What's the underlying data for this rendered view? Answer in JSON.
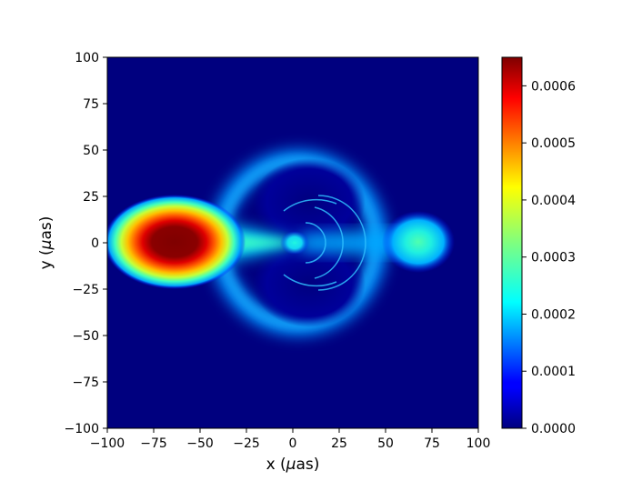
{
  "chart_data": {
    "type": "heatmap",
    "title": "",
    "xlabel_pre": "x (",
    "xlabel_mu": "μ",
    "xlabel_post": "as)",
    "ylabel_pre": "y (",
    "ylabel_mu": "μ",
    "ylabel_post": "as)",
    "xlim": [
      -100,
      100
    ],
    "ylim": [
      -100,
      100
    ],
    "xticks": [
      "−100",
      "−75",
      "−50",
      "−25",
      "0",
      "25",
      "50",
      "75",
      "100"
    ],
    "yticks": [
      "100",
      "75",
      "50",
      "25",
      "0",
      "−25",
      "−50",
      "−75",
      "−100"
    ],
    "xtick_values": [
      -100,
      -75,
      -50,
      -25,
      0,
      25,
      50,
      75,
      100
    ],
    "ytick_values": [
      100,
      75,
      50,
      25,
      0,
      -25,
      -50,
      -75,
      -100
    ],
    "colormap": "jet",
    "colorbar": {
      "range": [
        0,
        0.00065
      ],
      "ticks": [
        "0.0000",
        "0.0001",
        "0.0002",
        "0.0003",
        "0.0004",
        "0.0005",
        "0.0006"
      ],
      "tick_values": [
        0,
        0.0001,
        0.0002,
        0.0003,
        0.0004,
        0.0005,
        0.0006
      ]
    },
    "features": [
      {
        "name": "bright-blob",
        "x": -70,
        "y": 0,
        "peak": 0.00065
      },
      {
        "name": "right-blob",
        "x": 68,
        "y": 0,
        "peak": 0.00018
      },
      {
        "name": "central-spot",
        "x": 0,
        "y": 0,
        "peak": 0.00015
      },
      {
        "name": "outer-ring",
        "x": 0,
        "y": 0,
        "radius": 42,
        "peak": 0.00012
      }
    ]
  }
}
